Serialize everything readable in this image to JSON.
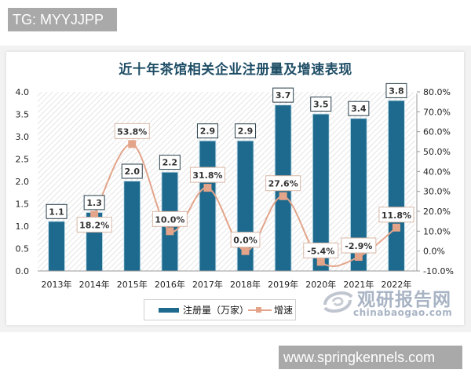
{
  "watermarks": {
    "top": "TG: MYYJJPP",
    "bottom": "www.springkennels.com"
  },
  "logo": {
    "name_cn": "观研报告网",
    "domain": "chinabaogao.com"
  },
  "legend": {
    "bar_label": "注册量（万家）",
    "line_label": "增速"
  },
  "colors": {
    "bar": "#1e6a8e",
    "line": "#e3a48a",
    "title": "#1f4e66"
  },
  "chart_data": {
    "type": "bar+line",
    "title": "近十年茶馆相关企业注册量及增速表现",
    "categories": [
      "2013年",
      "2014年",
      "2015年",
      "2016年",
      "2017年",
      "2018年",
      "2019年",
      "2020年",
      "2021年",
      "2022年"
    ],
    "series": [
      {
        "name": "注册量（万家）",
        "type": "bar",
        "axis": "left",
        "values": [
          1.1,
          1.3,
          2.0,
          2.2,
          2.9,
          2.9,
          3.7,
          3.5,
          3.4,
          3.8
        ],
        "labels": [
          "1.1",
          "1.3",
          "2.0",
          "2.2",
          "2.9",
          "2.9",
          "3.7",
          "3.5",
          "3.4",
          "3.8"
        ]
      },
      {
        "name": "增速",
        "type": "line",
        "axis": "right",
        "values": [
          null,
          18.2,
          53.8,
          10.0,
          31.8,
          0.0,
          27.6,
          -5.4,
          -2.9,
          11.8
        ],
        "labels": [
          "",
          "18.2%",
          "53.8%",
          "10.0%",
          "31.8%",
          "0.0%",
          "27.6%",
          "-5.4%",
          "-2.9%",
          "11.8%"
        ]
      }
    ],
    "left_axis": {
      "ylim": [
        0,
        4.0
      ],
      "ticks": [
        "0.0",
        "0.5",
        "1.0",
        "1.5",
        "2.0",
        "2.5",
        "3.0",
        "3.5",
        "4.0"
      ]
    },
    "right_axis": {
      "ylim": [
        -10,
        80
      ],
      "ticks": [
        "-10.0%",
        "0.0%",
        "10.0%",
        "20.0%",
        "30.0%",
        "40.0%",
        "50.0%",
        "60.0%",
        "70.0%",
        "80.0%"
      ]
    },
    "xlabel": "",
    "ylabel": "",
    "legend_position": "bottom",
    "grid": false
  }
}
